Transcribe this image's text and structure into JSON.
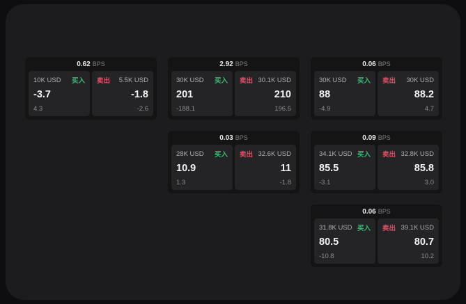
{
  "colors": {
    "buy_green": "#3dba73",
    "sell_red": "#dd5066",
    "panel_bg": "#1c1c1e",
    "card_bg": "#141415",
    "subpanel_bg": "#242427"
  },
  "labels": {
    "bps": "BPS",
    "buy": "买入",
    "sell": "卖出"
  },
  "cards": [
    {
      "bps": "0.62",
      "buy": {
        "amount": "10K USD",
        "main": "-3.7",
        "sub": "4.3"
      },
      "sell": {
        "amount": "5.5K USD",
        "main": "-1.8",
        "sub": "-2.6"
      }
    },
    {
      "bps": "2.92",
      "buy": {
        "amount": "30K USD",
        "main": "201",
        "sub": "-188.1"
      },
      "sell": {
        "amount": "30.1K USD",
        "main": "210",
        "sub": "196.5"
      }
    },
    {
      "bps": "0.06",
      "buy": {
        "amount": "30K USD",
        "main": "88",
        "sub": "-4.9"
      },
      "sell": {
        "amount": "30K USD",
        "main": "88.2",
        "sub": "4.7"
      }
    },
    {
      "bps": "0.03",
      "buy": {
        "amount": "28K USD",
        "main": "10.9",
        "sub": "1.3"
      },
      "sell": {
        "amount": "32.6K USD",
        "main": "11",
        "sub": "-1.8"
      }
    },
    {
      "bps": "0.09",
      "buy": {
        "amount": "34.1K USD",
        "main": "85.5",
        "sub": "-3.1"
      },
      "sell": {
        "amount": "32.8K USD",
        "main": "85.8",
        "sub": "3.0"
      }
    },
    {
      "bps": "0.06",
      "buy": {
        "amount": "31.8K USD",
        "main": "80.5",
        "sub": "-10.8"
      },
      "sell": {
        "amount": "39.1K USD",
        "main": "80.7",
        "sub": "10.2"
      }
    }
  ]
}
